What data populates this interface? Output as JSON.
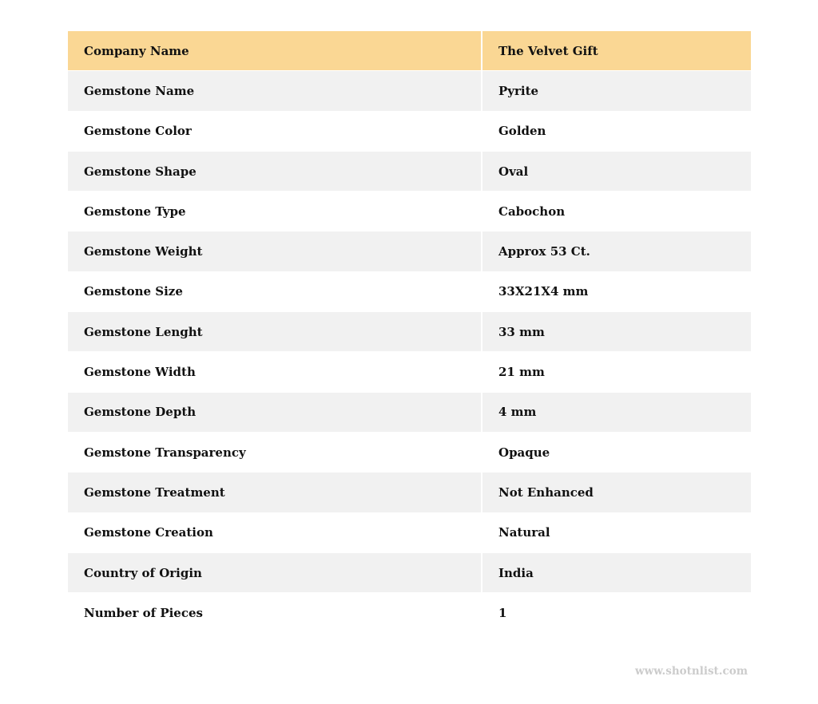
{
  "table": {
    "header": {
      "key": "Company Name",
      "value": "The Velvet Gift"
    },
    "rows": [
      {
        "key": "Gemstone Name",
        "value": "Pyrite"
      },
      {
        "key": "Gemstone Color",
        "value": "Golden"
      },
      {
        "key": "Gemstone Shape",
        "value": "Oval"
      },
      {
        "key": "Gemstone Type",
        "value": "Cabochon"
      },
      {
        "key": "Gemstone Weight",
        "value": "Approx 53 Ct."
      },
      {
        "key": "Gemstone Size",
        "value": "33X21X4 mm"
      },
      {
        "key": "Gemstone Lenght",
        "value": "33 mm"
      },
      {
        "key": "Gemstone Width",
        "value": "21 mm"
      },
      {
        "key": "Gemstone Depth",
        "value": "4 mm"
      },
      {
        "key": "Gemstone Transparency",
        "value": "Opaque"
      },
      {
        "key": "Gemstone Treatment",
        "value": "Not Enhanced"
      },
      {
        "key": "Gemstone Creation",
        "value": "Natural"
      },
      {
        "key": "Country of Origin",
        "value": "India"
      },
      {
        "key": "Number of Pieces",
        "value": "1"
      }
    ]
  },
  "watermark": "www.shotnlist.com",
  "colors": {
    "header_bg": "#fad794",
    "alt_row_bg": "#f1f1f1"
  }
}
